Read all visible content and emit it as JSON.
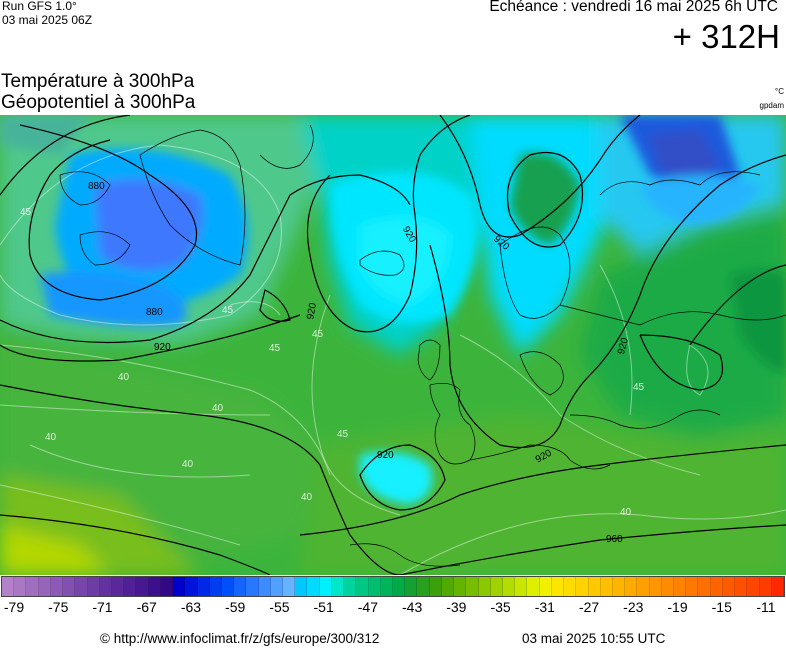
{
  "header": {
    "run_label": "Run GFS 1.0°",
    "run_date": "03 mai 2025 06Z",
    "echeance": "Echéance : vendredi 16 mai 2025 6h UTC",
    "horizon": "+ 312H",
    "title_line1": "Température à 300hPa",
    "title_line2": "Géopotentiel à 300hPa",
    "unit_temp": "°C",
    "unit_geo": "gpdam"
  },
  "map": {
    "contour_labels": [
      "880",
      "880",
      "920",
      "920",
      "920",
      "920",
      "920",
      "920",
      "920",
      "960",
      "45",
      "45",
      "45",
      "45",
      "45",
      "45",
      "40",
      "40",
      "40",
      "40",
      "40",
      "40"
    ]
  },
  "scale": {
    "colors": [
      "#b482c8",
      "#aa78c3",
      "#a06ebe",
      "#9664b9",
      "#8c5ab4",
      "#8250af",
      "#7846aa",
      "#6e3ca5",
      "#6432a0",
      "#5a289b",
      "#502096",
      "#461891",
      "#3c108c",
      "#320887",
      "#0000cd",
      "#0014dc",
      "#0028e6",
      "#003cf0",
      "#0050fa",
      "#1464ff",
      "#2878ff",
      "#3c8cff",
      "#50a0ff",
      "#64b4ff",
      "#00c8ff",
      "#00dcff",
      "#00f0ff",
      "#00e6c8",
      "#00d2a0",
      "#00c882",
      "#00be6e",
      "#00b45a",
      "#00aa46",
      "#14a032",
      "#28a01e",
      "#3ca00a",
      "#50aa00",
      "#64b400",
      "#78be00",
      "#8cc800",
      "#a0d200",
      "#b4dc00",
      "#c8e600",
      "#dcf000",
      "#f0f000",
      "#fae600",
      "#ffdc00",
      "#ffd200",
      "#ffc800",
      "#ffbe00",
      "#ffb400",
      "#ffaa00",
      "#ffa000",
      "#ff9600",
      "#ff8c00",
      "#ff8200",
      "#ff7800",
      "#ff6e00",
      "#ff6400",
      "#ff5a00",
      "#ff5000",
      "#ff4600",
      "#ff3c00",
      "#ff2800"
    ],
    "ticks": [
      "-79",
      "-75",
      "-71",
      "-67",
      "-63",
      "-59",
      "-55",
      "-51",
      "-47",
      "-43",
      "-39",
      "-35",
      "-31",
      "-27",
      "-23",
      "-19",
      "-15",
      "-11"
    ]
  },
  "footer": {
    "credit": "© http://www.infoclimat.fr/z/gfs/europe/300/312",
    "timestamp": "03 mai 2025 10:55 UTC"
  }
}
